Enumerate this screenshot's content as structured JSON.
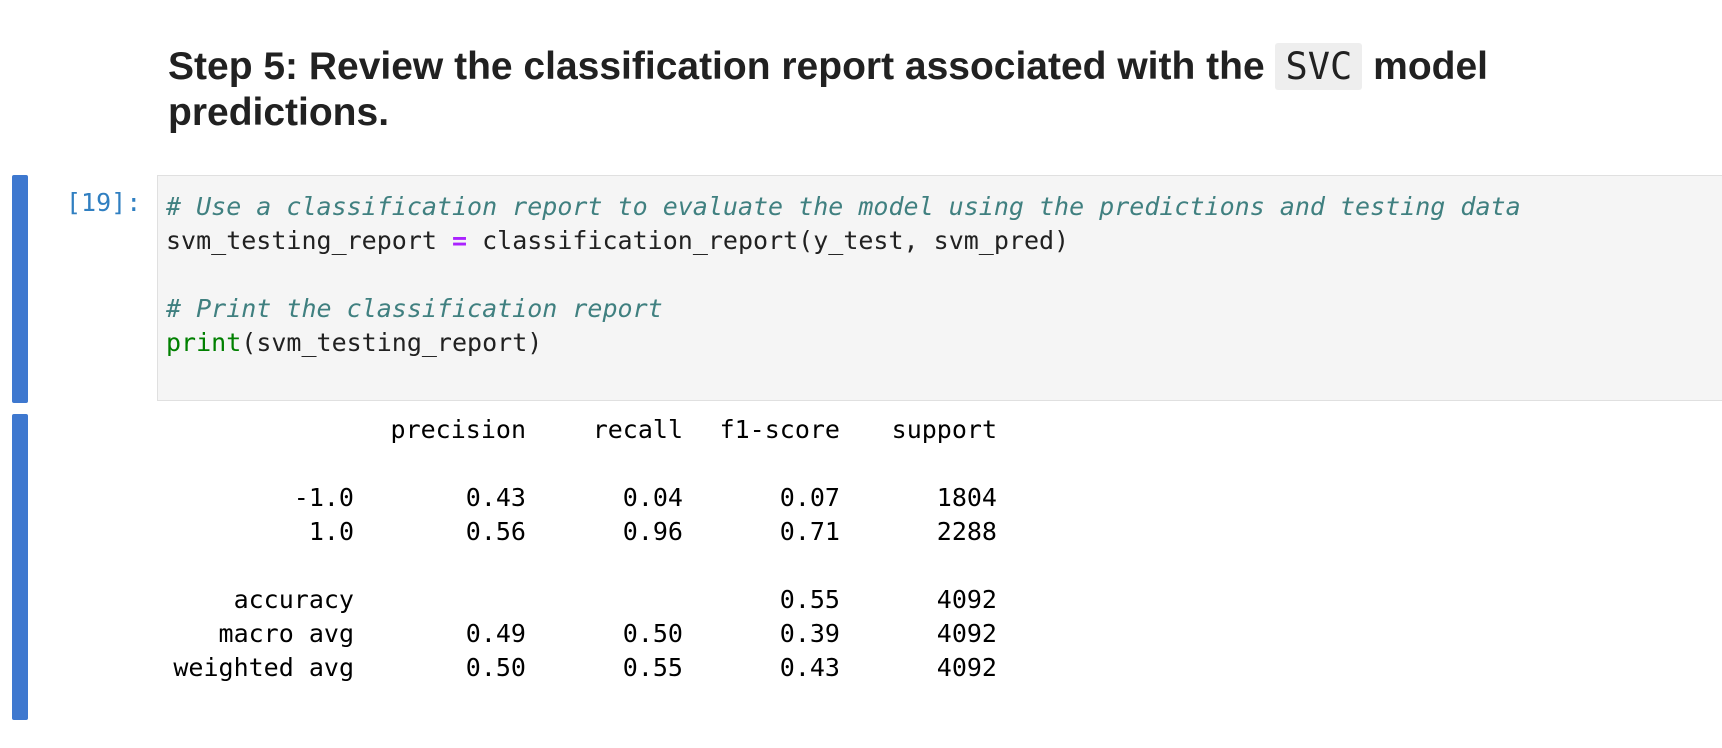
{
  "heading": {
    "prefix": "Step 5: Review the classification report associated with the ",
    "code": "SVC",
    "suffix": " model predictions."
  },
  "cell": {
    "prompt": "[19]:",
    "code_lines": [
      {
        "comment": "# Use a classification report to evaluate the model using the predictions and testing data"
      },
      {
        "var": "svm_testing_report ",
        "op": "=",
        "rest": " classification_report(y_test, svm_pred)"
      },
      {
        "blank": ""
      },
      {
        "comment": "# Print the classification report"
      },
      {
        "builtin": "print",
        "rest": "(svm_testing_report)"
      }
    ]
  },
  "report": {
    "columns": [
      "",
      "precision",
      "recall",
      "f1-score",
      "support"
    ],
    "rows": [
      [
        "-1.0",
        "0.43",
        "0.04",
        "0.07",
        "1804"
      ],
      [
        "1.0",
        "0.56",
        "0.96",
        "0.71",
        "2288"
      ],
      [
        "accuracy",
        "",
        "",
        "0.55",
        "4092"
      ],
      [
        "macro avg",
        "0.49",
        "0.50",
        "0.39",
        "4092"
      ],
      [
        "weighted avg",
        "0.50",
        "0.55",
        "0.43",
        "4092"
      ]
    ]
  }
}
